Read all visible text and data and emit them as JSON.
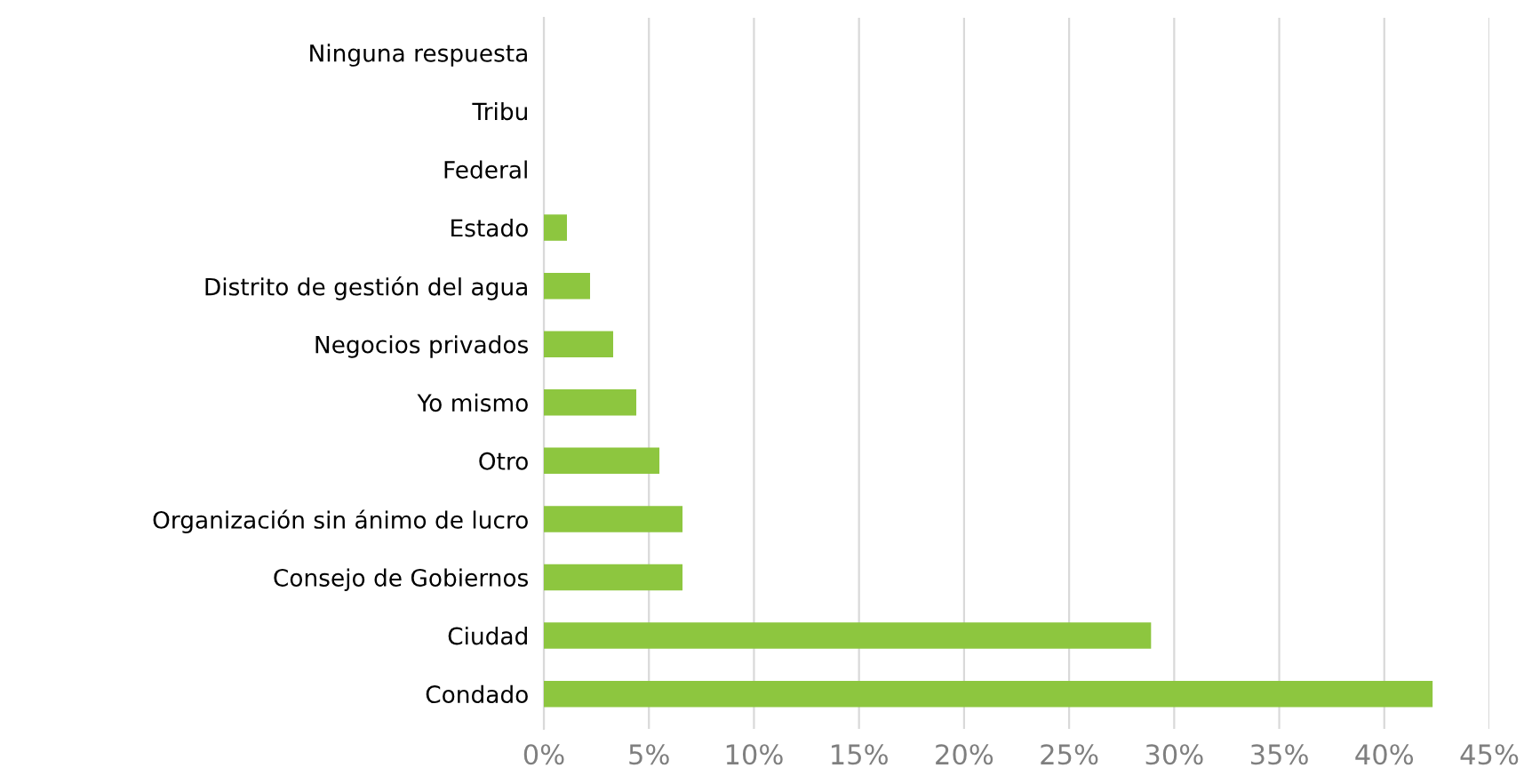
{
  "chart_data": {
    "type": "bar",
    "orientation": "horizontal",
    "categories": [
      "Ninguna respuesta",
      "Tribu",
      "Federal",
      "Estado",
      "Distrito de gestión del agua",
      "Negocios privados",
      "Yo mismo",
      "Otro",
      "Organización sin ánimo de lucro",
      "Consejo de Gobiernos",
      "Ciudad",
      "Condado"
    ],
    "values": [
      0,
      0,
      0,
      1.1,
      2.2,
      3.3,
      4.4,
      5.5,
      6.6,
      6.6,
      28.9,
      42.3
    ],
    "color": "#8dc63f",
    "xlim": [
      0,
      45
    ],
    "xticks": [
      {
        "value": 0,
        "label": "0%"
      },
      {
        "value": 5,
        "label": "5%"
      },
      {
        "value": 10,
        "label": "10%"
      },
      {
        "value": 15,
        "label": "15%"
      },
      {
        "value": 20,
        "label": "20%"
      },
      {
        "value": 25,
        "label": "25%"
      },
      {
        "value": 30,
        "label": "30%"
      },
      {
        "value": 35,
        "label": "35%"
      },
      {
        "value": 40,
        "label": "40%"
      },
      {
        "value": 45,
        "label": "45%"
      }
    ],
    "grid": "x"
  }
}
